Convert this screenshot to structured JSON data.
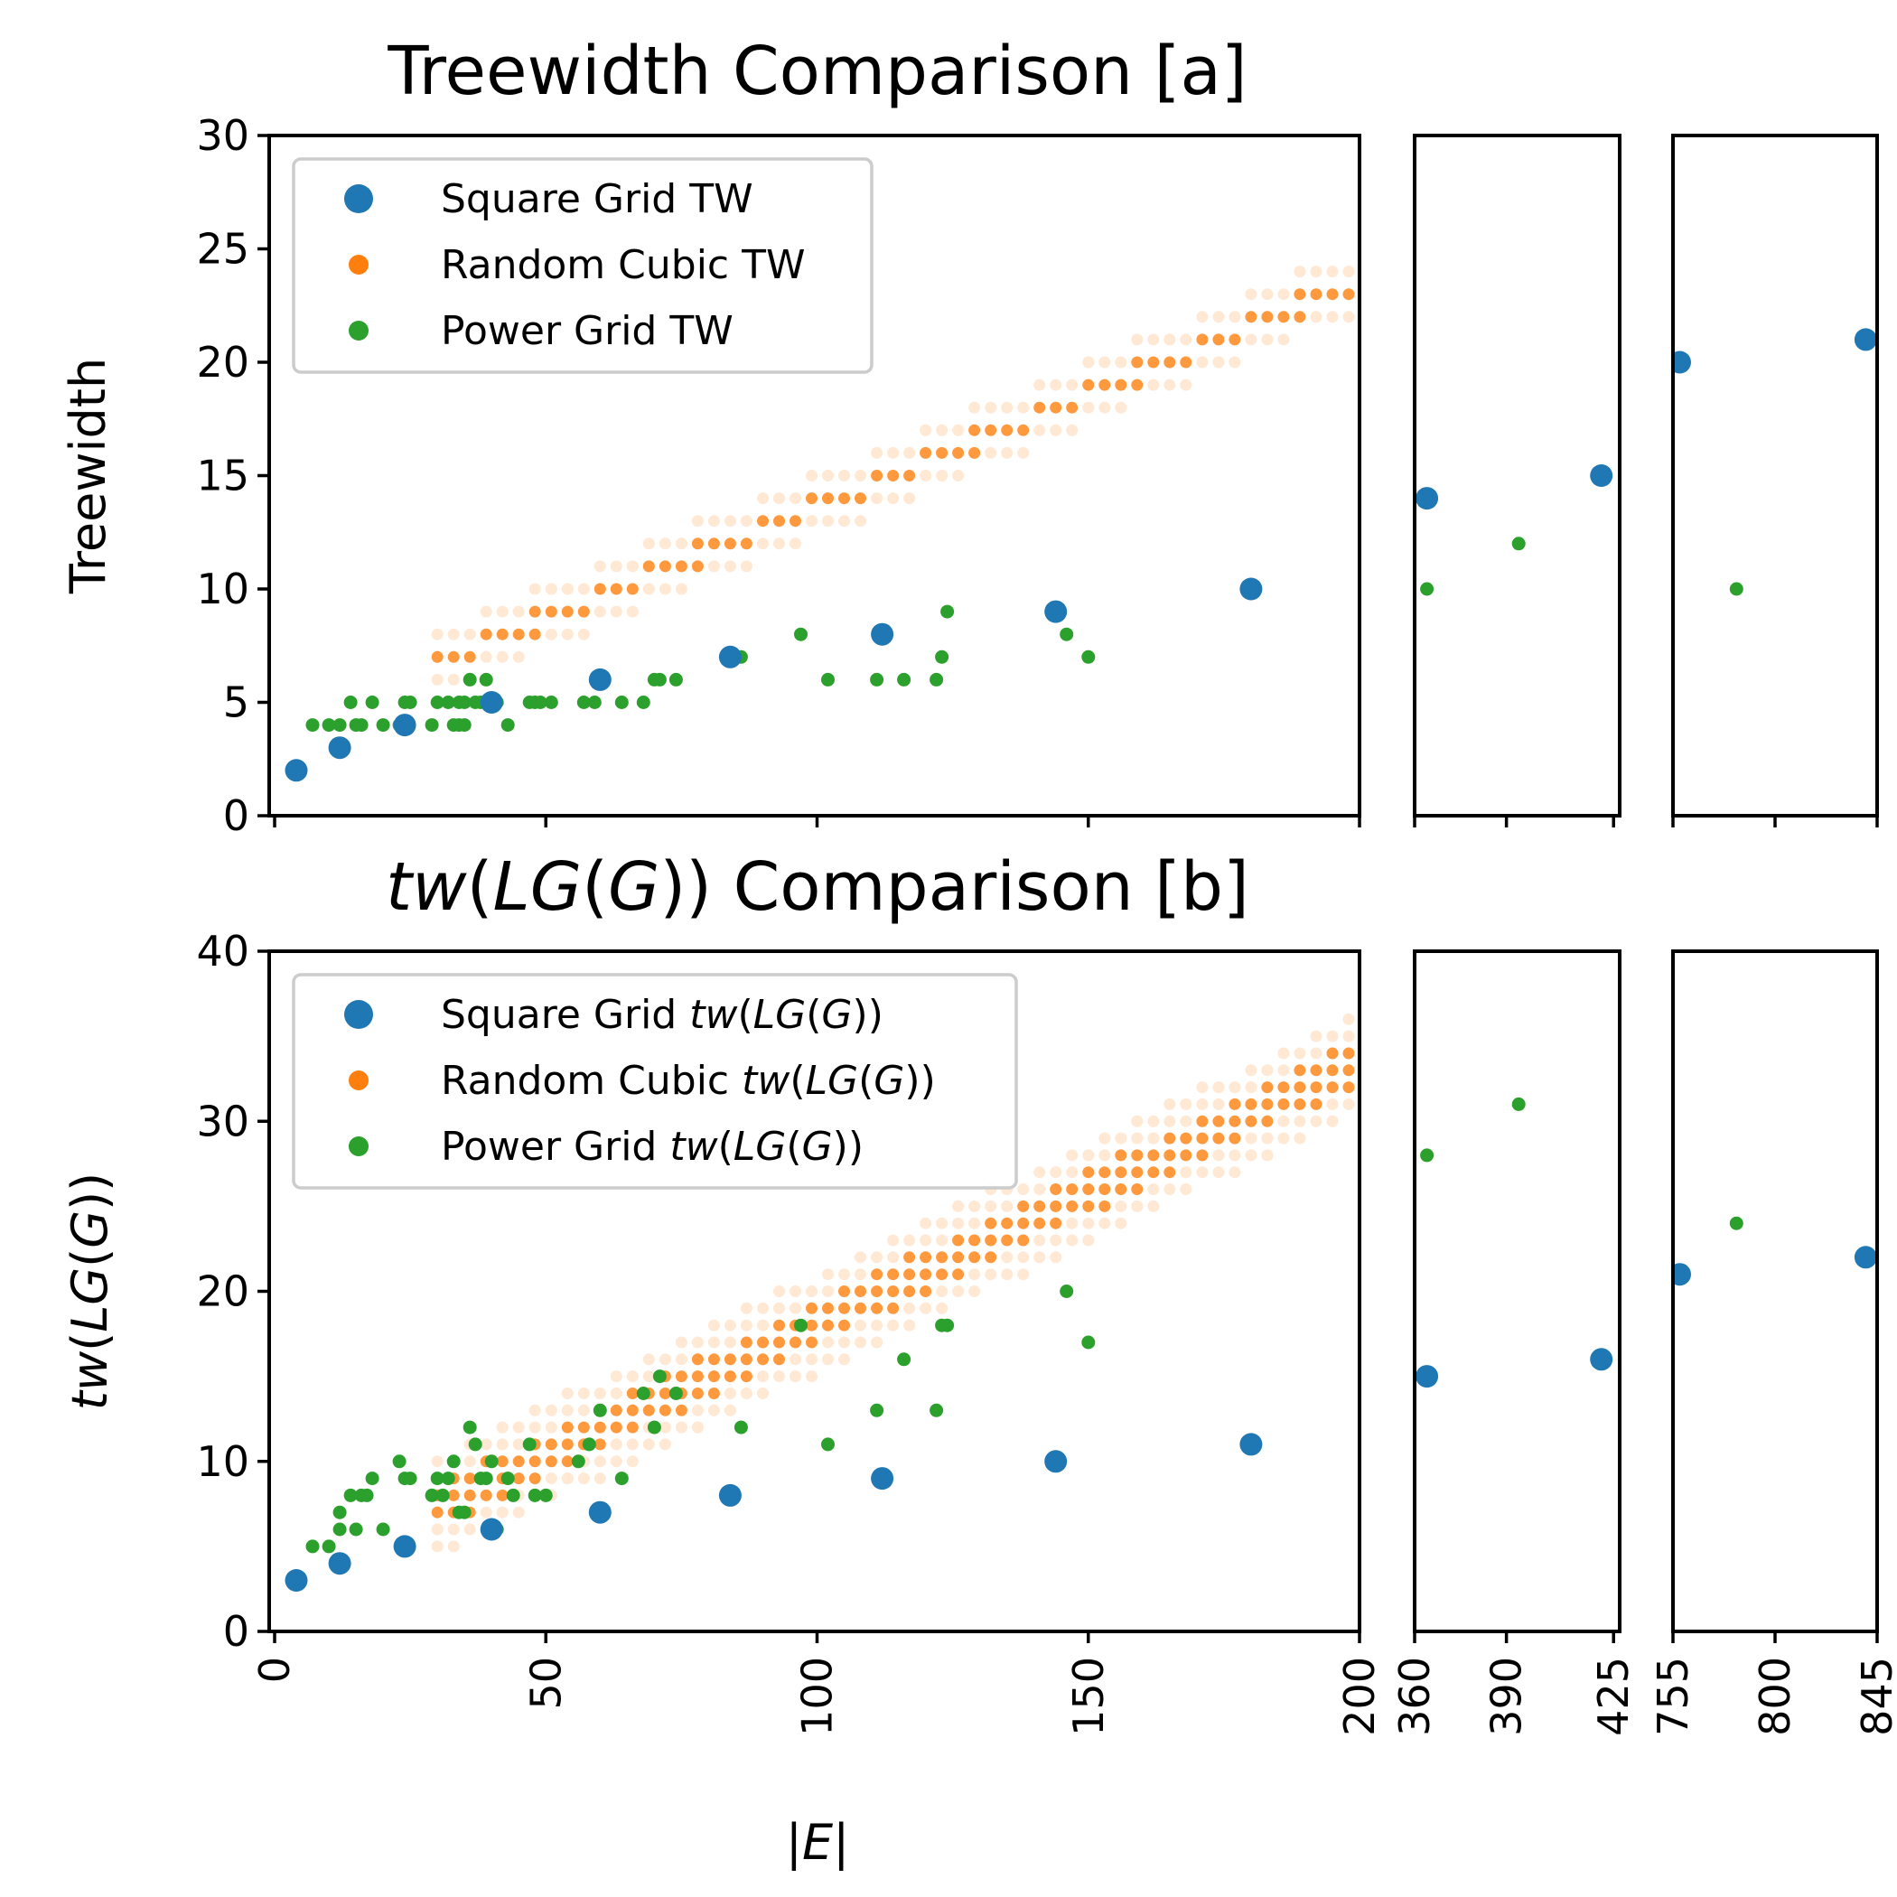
{
  "colors": {
    "square": "#1f77b4",
    "cubic": "#ff7f0e",
    "power": "#2ca02c"
  },
  "chart_data": [
    {
      "type": "scatter",
      "title": "Treewidth Comparison [a]",
      "ylabel": "Treewidth",
      "xlabel": "",
      "ylim": [
        0,
        30
      ],
      "yticks": [
        0,
        5,
        10,
        15,
        20,
        25,
        30
      ],
      "x_segments": [
        {
          "range": [
            -1,
            200
          ],
          "ticks": [
            0,
            50,
            100,
            150,
            200
          ]
        },
        {
          "range": [
            360,
            427
          ],
          "ticks": [
            360,
            390,
            425
          ]
        },
        {
          "range": [
            755,
            845
          ],
          "ticks": [
            755,
            800,
            845
          ]
        }
      ],
      "legend": {
        "position": "top-left",
        "entries": [
          "Square Grid TW",
          "Random Cubic TW",
          "Power Grid TW"
        ]
      },
      "series": [
        {
          "name": "Square Grid TW",
          "kind": "square",
          "points": [
            [
              4,
              2
            ],
            [
              12,
              3
            ],
            [
              24,
              4
            ],
            [
              40,
              5
            ],
            [
              60,
              6
            ],
            [
              84,
              7
            ],
            [
              112,
              8
            ],
            [
              144,
              9
            ],
            [
              180,
              10
            ],
            [
              364,
              14
            ],
            [
              421,
              15
            ],
            [
              758,
              20
            ],
            [
              840,
              21
            ]
          ]
        },
        {
          "name": "Random Cubic TW",
          "kind": "cubic",
          "band": {
            "x_start": 30,
            "x_end": 199,
            "x_step": 3,
            "low_offset": -0.6,
            "high_offset": 2.4,
            "core_low": 0.3,
            "core_high": 1.4,
            "slope": 0.0995,
            "intercept": 2.85
          }
        },
        {
          "name": "Power Grid TW",
          "kind": "power",
          "points": [
            [
              7,
              4
            ],
            [
              10,
              4
            ],
            [
              12,
              4
            ],
            [
              14,
              5
            ],
            [
              15,
              4
            ],
            [
              16,
              4
            ],
            [
              18,
              5
            ],
            [
              20,
              4
            ],
            [
              23,
              4
            ],
            [
              24,
              5
            ],
            [
              25,
              5
            ],
            [
              29,
              4
            ],
            [
              30,
              5
            ],
            [
              32,
              5
            ],
            [
              33,
              4
            ],
            [
              34,
              4
            ],
            [
              34,
              5
            ],
            [
              35,
              4
            ],
            [
              35,
              5
            ],
            [
              36,
              6
            ],
            [
              37,
              5
            ],
            [
              38,
              5
            ],
            [
              39,
              6
            ],
            [
              40,
              5
            ],
            [
              41,
              5
            ],
            [
              43,
              4
            ],
            [
              47,
              5
            ],
            [
              48,
              5
            ],
            [
              49,
              5
            ],
            [
              51,
              5
            ],
            [
              57,
              5
            ],
            [
              59,
              5
            ],
            [
              60,
              6
            ],
            [
              64,
              5
            ],
            [
              68,
              5
            ],
            [
              70,
              6
            ],
            [
              71,
              6
            ],
            [
              74,
              6
            ],
            [
              86,
              7
            ],
            [
              97,
              8
            ],
            [
              102,
              6
            ],
            [
              111,
              6
            ],
            [
              116,
              6
            ],
            [
              122,
              6
            ],
            [
              123,
              7
            ],
            [
              124,
              9
            ],
            [
              146,
              8
            ],
            [
              150,
              7
            ],
            [
              364,
              10
            ],
            [
              394,
              12
            ],
            [
              783,
              10
            ]
          ]
        }
      ]
    },
    {
      "type": "scatter",
      "title": "tw(LG(G)) Comparison [b]",
      "ylabel": "tw(LG(G))",
      "xlabel": "|E|",
      "ylim": [
        0,
        40
      ],
      "yticks": [
        0,
        10,
        20,
        30,
        40
      ],
      "x_segments": [
        {
          "range": [
            -1,
            200
          ],
          "ticks": [
            0,
            50,
            100,
            150,
            200
          ]
        },
        {
          "range": [
            360,
            427
          ],
          "ticks": [
            360,
            390,
            425
          ]
        },
        {
          "range": [
            755,
            845
          ],
          "ticks": [
            755,
            800,
            845
          ]
        }
      ],
      "legend": {
        "position": "top-left",
        "entries": [
          "Square Grid tw(LG(G))",
          "Random Cubic tw(LG(G))",
          "Power Grid tw(LG(G))"
        ]
      },
      "series": [
        {
          "name": "Square Grid tw(LG(G))",
          "kind": "square",
          "points": [
            [
              4,
              3
            ],
            [
              12,
              4
            ],
            [
              24,
              5
            ],
            [
              40,
              6
            ],
            [
              60,
              7
            ],
            [
              84,
              8
            ],
            [
              112,
              9
            ],
            [
              144,
              10
            ],
            [
              180,
              11
            ],
            [
              364,
              15
            ],
            [
              421,
              16
            ],
            [
              758,
              21
            ],
            [
              840,
              22
            ]
          ]
        },
        {
          "name": "Random Cubic tw(LG(G))",
          "kind": "cubic",
          "band": {
            "x_start": 30,
            "x_end": 199,
            "x_step": 3,
            "low_offset": -2.5,
            "high_offset": 3.5,
            "core_low": -0.8,
            "core_high": 1.8,
            "slope": 0.154,
            "intercept": 2.2
          }
        },
        {
          "name": "Power Grid tw(LG(G))",
          "kind": "power",
          "points": [
            [
              7,
              5
            ],
            [
              10,
              5
            ],
            [
              12,
              6
            ],
            [
              12,
              7
            ],
            [
              14,
              8
            ],
            [
              15,
              6
            ],
            [
              16,
              8
            ],
            [
              17,
              8
            ],
            [
              18,
              9
            ],
            [
              20,
              6
            ],
            [
              23,
              10
            ],
            [
              24,
              9
            ],
            [
              25,
              9
            ],
            [
              29,
              8
            ],
            [
              30,
              9
            ],
            [
              31,
              8
            ],
            [
              32,
              9
            ],
            [
              33,
              10
            ],
            [
              34,
              7
            ],
            [
              35,
              7
            ],
            [
              36,
              12
            ],
            [
              37,
              11
            ],
            [
              38,
              9
            ],
            [
              39,
              9
            ],
            [
              40,
              10
            ],
            [
              41,
              6
            ],
            [
              43,
              9
            ],
            [
              44,
              8
            ],
            [
              47,
              11
            ],
            [
              48,
              8
            ],
            [
              50,
              8
            ],
            [
              56,
              10
            ],
            [
              58,
              11
            ],
            [
              60,
              13
            ],
            [
              64,
              9
            ],
            [
              68,
              14
            ],
            [
              70,
              12
            ],
            [
              71,
              15
            ],
            [
              74,
              14
            ],
            [
              86,
              12
            ],
            [
              97,
              18
            ],
            [
              102,
              11
            ],
            [
              111,
              13
            ],
            [
              116,
              16
            ],
            [
              122,
              13
            ],
            [
              123,
              18
            ],
            [
              124,
              18
            ],
            [
              146,
              20
            ],
            [
              150,
              17
            ],
            [
              364,
              28
            ],
            [
              394,
              31
            ],
            [
              783,
              24
            ]
          ]
        }
      ]
    }
  ]
}
